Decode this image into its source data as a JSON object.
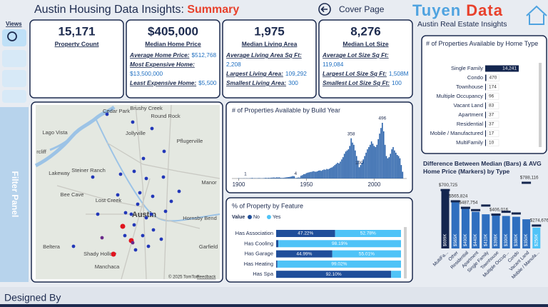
{
  "header": {
    "title": "Austin Housing Data Insights:",
    "subtitle": "Summary",
    "nav": "Cover Page",
    "brand_first": "Tuyen",
    "brand_second": "Data",
    "brand_tagline": "Austin Real Estate Insights"
  },
  "sidebar": {
    "views": "Views",
    "filter_panel": "Filter Panel"
  },
  "footer": {
    "designed_by": "Designed By"
  },
  "kpis": [
    {
      "value": "15,171",
      "label": "Property Count"
    },
    {
      "value": "$405,000",
      "label": "Median Home Price",
      "details": [
        {
          "label": "Average Home Price:",
          "value": "$512,768"
        },
        {
          "label": "Most Expensive Home:",
          "value": "$13,500,000"
        },
        {
          "label": "Least Expensive Home:",
          "value": "$5,500"
        }
      ]
    },
    {
      "value": "1,975",
      "label": "Median Living Area",
      "details": [
        {
          "label": "Average Living Area Sq Ft:",
          "value": "2,208"
        },
        {
          "label": "Largest Living Area:",
          "value": "109,292"
        },
        {
          "label": "Smallest Living Area:",
          "value": "300"
        }
      ]
    },
    {
      "value": "8,276",
      "label": "Median Lot Size",
      "details": [
        {
          "label": "Average Lot Size Sq Ft:",
          "value": "119,084"
        },
        {
          "label": "Largest Lot Size Sq Ft:",
          "value": "1,508M"
        },
        {
          "label": "Smallest Lot Size Sq Ft:",
          "value": "100"
        }
      ]
    }
  ],
  "map": {
    "places": [
      "Cedar Park",
      "Brushy Creek",
      "Round Rock",
      "Jollyville",
      "Pflugerville",
      "Lago Vista",
      "rcliff",
      "Lakeway",
      "Steiner Ranch",
      "Bee Cave",
      "Lost Creek",
      "Austin",
      "Manor",
      "Hornsby Bend",
      "Garfield",
      "Beltera",
      "Shady Hollow",
      "Manchaca"
    ],
    "attribution": "© 2025 TomTom",
    "feedback": "Feedback"
  },
  "chart_data": [
    {
      "type": "hbar",
      "title": "# of Properties Available by Home Type",
      "categories": [
        "Single Family",
        "Condo",
        "Townhouse",
        "Multiple Occupancy",
        "Vacant Land",
        "Apartment",
        "Residential",
        "Mobile / Manufactured",
        "MultiFamily"
      ],
      "values": [
        14241,
        470,
        174,
        96,
        83,
        37,
        37,
        17,
        10
      ],
      "value_labels": [
        "14,241",
        "470",
        "174",
        "96",
        "83",
        "37",
        "37",
        "17",
        "10"
      ],
      "color": "#14264f"
    },
    {
      "type": "bar",
      "title": "# of Properties Available by Build Year",
      "x": [
        1900,
        1901,
        1902,
        1903,
        1904,
        1905,
        1906,
        1907,
        1908,
        1909,
        1910,
        1911,
        1912,
        1913,
        1914,
        1915,
        1916,
        1917,
        1918,
        1919,
        1920,
        1921,
        1922,
        1923,
        1924,
        1925,
        1926,
        1927,
        1928,
        1929,
        1930,
        1931,
        1932,
        1933,
        1934,
        1935,
        1936,
        1937,
        1938,
        1939,
        1940,
        1941,
        1942,
        1943,
        1944,
        1945,
        1946,
        1947,
        1948,
        1949,
        1950,
        1951,
        1952,
        1953,
        1954,
        1955,
        1956,
        1957,
        1958,
        1959,
        1960,
        1961,
        1962,
        1963,
        1964,
        1965,
        1966,
        1967,
        1968,
        1969,
        1970,
        1971,
        1972,
        1973,
        1974,
        1975,
        1976,
        1977,
        1978,
        1979,
        1980,
        1981,
        1982,
        1983,
        1984,
        1985,
        1986,
        1987,
        1988,
        1989,
        1990,
        1991,
        1992,
        1993,
        1994,
        1995,
        1996,
        1997,
        1998,
        1999,
        2000,
        2001,
        2002,
        2003,
        2004,
        2005,
        2006,
        2007,
        2008,
        2009,
        2010,
        2011,
        2012,
        2013,
        2014,
        2015,
        2016,
        2017,
        2018,
        2019,
        2020,
        2021
      ],
      "values": [
        3,
        1,
        1,
        1,
        2,
        1,
        2,
        1,
        2,
        3,
        5,
        2,
        3,
        2,
        3,
        4,
        3,
        2,
        3,
        4,
        6,
        4,
        6,
        5,
        7,
        8,
        9,
        7,
        10,
        9,
        10,
        6,
        5,
        6,
        8,
        10,
        12,
        13,
        15,
        18,
        22,
        20,
        4,
        6,
        9,
        8,
        25,
        30,
        38,
        40,
        48,
        52,
        55,
        58,
        60,
        65,
        62,
        60,
        64,
        70,
        72,
        68,
        75,
        80,
        78,
        85,
        82,
        88,
        95,
        100,
        110,
        120,
        130,
        140,
        135,
        150,
        170,
        190,
        220,
        240,
        250,
        260,
        290,
        358,
        320,
        300,
        250,
        200,
        160,
        100,
        120,
        140,
        170,
        200,
        230,
        260,
        280,
        300,
        330,
        310,
        290,
        280,
        300,
        350,
        400,
        450,
        496,
        420,
        300,
        200,
        180,
        190,
        220,
        260,
        280,
        250,
        230,
        210,
        200,
        180,
        120,
        60
      ],
      "value_labels": [
        null,
        null,
        null,
        null,
        null,
        "1",
        null,
        null,
        null,
        null,
        null,
        null,
        null,
        null,
        null,
        null,
        null,
        null,
        null,
        null,
        null,
        null,
        null,
        null,
        null,
        null,
        null,
        null,
        null,
        null,
        null,
        null,
        null,
        null,
        null,
        null,
        null,
        null,
        null,
        null,
        null,
        null,
        "4",
        null,
        null,
        null,
        null,
        null,
        null,
        null,
        null,
        null,
        null,
        null,
        null,
        null,
        null,
        null,
        null,
        null,
        null,
        null,
        null,
        null,
        null,
        null,
        null,
        null,
        null,
        null,
        null,
        null,
        null,
        null,
        null,
        null,
        null,
        null,
        null,
        null,
        null,
        null,
        null,
        "358",
        null,
        null,
        null,
        null,
        null,
        "100",
        null,
        null,
        null,
        null,
        null,
        null,
        null,
        null,
        null,
        null,
        null,
        null,
        null,
        null,
        null,
        null,
        "496",
        null,
        null,
        null,
        null,
        null,
        null,
        null,
        null,
        null,
        null,
        null,
        null,
        null,
        null,
        null
      ],
      "xlim": [
        1895,
        2024
      ],
      "xticks": [
        1900,
        1950,
        2000
      ],
      "color": "#1f5aa6"
    },
    {
      "type": "stacked_hbar",
      "title": "% of Property by Feature",
      "legend_title": "Value",
      "categories": [
        "Has Association",
        "Has Cooling",
        "Has Garage",
        "Has Heating",
        "Has Spa"
      ],
      "series": [
        {
          "name": "No",
          "color": "#1f4e9a",
          "values": [
            47.22,
            1.81,
            44.99,
            0.98,
            92.1
          ],
          "value_labels": [
            "47.22%",
            null,
            "44.99%",
            null,
            "92.10%"
          ]
        },
        {
          "name": "Yes",
          "color": "#4fc3f7",
          "values": [
            52.78,
            98.19,
            55.01,
            99.02,
            7.9
          ],
          "value_labels": [
            "52.78%",
            "98.19%",
            "55.01%",
            "99.02%",
            null
          ]
        }
      ]
    },
    {
      "type": "combo",
      "title": "Difference Between Median (Bars) & AVG Home Price (Markers) by Type",
      "categories": [
        "MultiFa...",
        "Other",
        "Residential",
        "Apartment",
        "Single Family",
        "Townhouse",
        "Multiple Occup...",
        "Condo",
        "Vacant Land",
        "Mobile / Manufa..."
      ],
      "series": [
        {
          "mark": "bar",
          "colors": [
            "#14264f",
            "#2f6fbf",
            "#2f6fbf",
            "#2f6fbf",
            "#2f6fbf",
            "#2f6fbf",
            "#2f6fbf",
            "#2f6fbf",
            "#2f6fbf",
            "#4fc3f7"
          ],
          "values": [
            699000,
            565000,
            490000,
            440000,
            410000,
            398000,
            390000,
            380000,
            350000,
            250000
          ],
          "value_labels": [
            "$699K",
            "$565K",
            "$490K",
            "$440K",
            "$410K",
            "$398K",
            "$390K",
            "$380K",
            "$350K",
            "$250K"
          ]
        },
        {
          "mark": "marker",
          "color": "#14264f",
          "values": [
            700725,
            565824,
            487754,
            460000,
            515000,
            406016,
            440000,
            420000,
            788116,
            274676
          ],
          "value_labels": [
            "$700,725",
            "$565,824",
            "$487,754",
            null,
            null,
            "$406,016",
            null,
            null,
            "$788,116",
            "$274,676"
          ]
        }
      ]
    }
  ]
}
